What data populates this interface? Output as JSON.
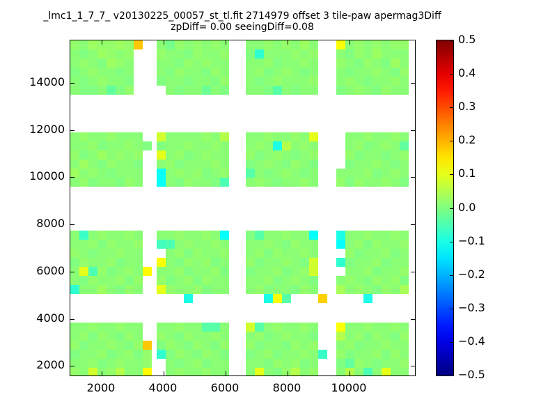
{
  "chart_data": {
    "type": "heatmap",
    "title": "_lmc1_1_7_7_ v20130225_00057_st_tl.fit 2714979 offset 3 tile-paw apermag3Diff",
    "subtitle": "zpDiff= 0.00 seeingDiff=0.08",
    "colormap": "jet",
    "grid": false,
    "xlim": [
      1000,
      12100
    ],
    "ylim": [
      1600,
      15800
    ],
    "x_ticks": [
      2000,
      4000,
      6000,
      8000,
      10000
    ],
    "y_ticks": [
      2000,
      4000,
      6000,
      8000,
      10000,
      12000,
      14000
    ],
    "colorbar": {
      "min": -0.5,
      "max": 0.5,
      "ticks": [
        0.5,
        0.4,
        0.3,
        0.2,
        0.1,
        0.0,
        -0.1,
        -0.2,
        -0.3,
        -0.4,
        -0.5
      ],
      "position": "right"
    },
    "blocks": [
      {
        "row": 0,
        "col": 0,
        "cells": [
          [
            0.02,
            0.01,
            0.03,
            0.02,
            0.02,
            0.03,
            0.02,
            0.18
          ],
          [
            0.01,
            0.0,
            0.01,
            0.03,
            0.02,
            0.01,
            0.02,
            null
          ],
          [
            0.01,
            0.02,
            0.01,
            0.0,
            0.03,
            0.02,
            0.01,
            null
          ],
          [
            0.0,
            0.01,
            0.02,
            0.01,
            0.01,
            0.0,
            0.01,
            null
          ],
          [
            0.01,
            0.0,
            0.01,
            0.02,
            0.01,
            0.01,
            0.0,
            null
          ],
          [
            0.01,
            0.0,
            0.0,
            0.01,
            -0.03,
            0.0,
            0.02,
            null
          ]
        ]
      },
      {
        "row": 0,
        "col": 1,
        "cells": [
          [
            0.01,
            -0.01,
            0.02,
            0.01,
            0.02,
            0.01,
            0.02,
            0.01
          ],
          [
            0.02,
            0.01,
            0.01,
            0.0,
            0.02,
            0.01,
            0.01,
            0.02
          ],
          [
            0.01,
            0.01,
            0.0,
            0.02,
            0.01,
            0.02,
            0.01,
            0.01
          ],
          [
            0.01,
            0.0,
            0.02,
            0.01,
            0.01,
            0.0,
            0.02,
            0.01
          ],
          [
            0.0,
            0.01,
            0.01,
            0.0,
            0.01,
            0.01,
            0.0,
            0.02
          ],
          [
            null,
            0.01,
            0.0,
            0.01,
            0.01,
            -0.02,
            0.01,
            0.0
          ]
        ]
      },
      {
        "row": 0,
        "col": 2,
        "cells": [
          [
            0.01,
            0.01,
            0.02,
            0.01,
            0.02,
            0.01,
            0.03,
            0.01
          ],
          [
            0.0,
            -0.08,
            0.01,
            0.01,
            0.01,
            0.02,
            0.01,
            0.02
          ],
          [
            0.01,
            0.01,
            0.02,
            0.0,
            0.01,
            0.01,
            0.02,
            0.01
          ],
          [
            0.01,
            0.02,
            0.0,
            0.01,
            0.02,
            0.01,
            0.0,
            0.01
          ],
          [
            0.01,
            0.0,
            0.01,
            0.02,
            0.01,
            0.01,
            0.01,
            0.02
          ],
          [
            0.01,
            0.01,
            0.0,
            -0.04,
            0.01,
            0.0,
            0.01,
            0.01
          ]
        ]
      },
      {
        "row": 0,
        "col": 3,
        "cells": [
          [
            0.12,
            0.01,
            0.02,
            0.01,
            0.02,
            0.01,
            0.02,
            0.02
          ],
          [
            0.01,
            0.0,
            0.02,
            0.01,
            0.03,
            0.01,
            0.01,
            0.01
          ],
          [
            0.02,
            0.01,
            0.0,
            0.02,
            0.01,
            0.0,
            0.03,
            0.01
          ],
          [
            0.01,
            0.0,
            0.01,
            0.01,
            0.02,
            0.01,
            0.0,
            0.02
          ],
          [
            0.01,
            0.02,
            0.01,
            0.0,
            0.01,
            0.01,
            0.02,
            0.01
          ],
          [
            0.0,
            0.01,
            0.02,
            0.01,
            0.0,
            0.02,
            0.01,
            0.01
          ]
        ]
      },
      {
        "row": 1,
        "col": 0,
        "cells": [
          [
            0.01,
            0.02,
            0.01,
            0.01,
            0.02,
            0.01,
            0.01,
            0.01,
            null
          ],
          [
            0.01,
            0.01,
            0.02,
            0.0,
            0.01,
            0.01,
            0.02,
            0.01,
            0.0
          ],
          [
            0.02,
            0.0,
            0.01,
            0.03,
            0.01,
            0.02,
            0.01,
            0.02,
            null
          ],
          [
            0.01,
            0.03,
            0.01,
            0.0,
            0.02,
            0.01,
            0.01,
            0.0,
            null
          ],
          [
            0.03,
            0.01,
            0.02,
            0.01,
            0.0,
            0.01,
            0.01,
            0.01,
            null
          ],
          [
            0.01,
            0.02,
            0.0,
            0.01,
            0.01,
            0.0,
            0.02,
            0.01,
            null
          ]
        ]
      },
      {
        "row": 1,
        "col": 1,
        "cells": [
          [
            0.08,
            0.01,
            0.01,
            0.01,
            0.01,
            0.02,
            0.01,
            0.05
          ],
          [
            0.0,
            0.01,
            0.01,
            0.02,
            0.01,
            0.01,
            0.02,
            0.01
          ],
          [
            0.1,
            0.01,
            0.02,
            0.0,
            0.01,
            0.02,
            0.01,
            0.01
          ],
          [
            0.01,
            0.02,
            0.0,
            0.01,
            0.01,
            0.01,
            0.02,
            0.01
          ],
          [
            -0.12,
            0.01,
            0.02,
            0.01,
            0.02,
            0.0,
            0.01,
            0.02
          ],
          [
            -0.12,
            0.01,
            0.0,
            0.02,
            0.01,
            0.01,
            0.0,
            -0.05
          ]
        ]
      },
      {
        "row": 1,
        "col": 2,
        "cells": [
          [
            0.01,
            0.01,
            0.02,
            0.01,
            0.01,
            0.02,
            0.01,
            0.1
          ],
          [
            0.01,
            0.02,
            0.01,
            -0.1,
            0.05,
            0.01,
            0.02,
            0.01
          ],
          [
            0.02,
            0.0,
            0.01,
            0.02,
            0.01,
            0.0,
            0.01,
            0.02
          ],
          [
            0.0,
            0.01,
            0.02,
            0.01,
            0.0,
            0.02,
            0.01,
            0.0
          ],
          [
            -0.04,
            0.01,
            0.0,
            0.01,
            0.02,
            0.01,
            0.0,
            0.01
          ],
          [
            0.01,
            0.02,
            0.01,
            0.0,
            0.01,
            0.01,
            0.02,
            0.01
          ]
        ]
      },
      {
        "row": 1,
        "col": 3,
        "cells": [
          [
            null,
            0.01,
            0.01,
            0.02,
            0.01,
            0.01,
            0.02,
            0.01
          ],
          [
            null,
            0.01,
            0.02,
            0.0,
            0.01,
            0.02,
            0.01,
            -0.03
          ],
          [
            null,
            0.02,
            0.0,
            0.01,
            0.01,
            0.0,
            0.01,
            0.02
          ],
          [
            null,
            0.0,
            0.01,
            0.01,
            0.02,
            0.01,
            0.0,
            0.01
          ],
          [
            0.01,
            0.01,
            0.01,
            0.02,
            0.0,
            0.01,
            0.02,
            0.01
          ],
          [
            0.02,
            0.0,
            0.02,
            0.01,
            0.01,
            0.02,
            0.01,
            0.0
          ]
        ]
      },
      {
        "row": 2,
        "col": 0,
        "cells": [
          [
            0.01,
            -0.07,
            0.01,
            0.02,
            0.01,
            0.01,
            0.02,
            0.01,
            null
          ],
          [
            0.01,
            0.01,
            0.02,
            0.0,
            0.02,
            0.01,
            0.01,
            0.02,
            null
          ],
          [
            0.02,
            0.01,
            0.0,
            0.01,
            0.01,
            0.02,
            0.01,
            0.01,
            null
          ],
          [
            0.0,
            0.02,
            0.01,
            0.01,
            0.02,
            0.0,
            0.01,
            0.01,
            null
          ],
          [
            0.01,
            0.1,
            -0.05,
            0.02,
            0.0,
            0.01,
            0.02,
            0.01,
            0.13
          ],
          [
            0.01,
            0.0,
            0.02,
            0.01,
            0.01,
            0.02,
            0.0,
            0.02,
            null
          ],
          [
            -0.08,
            0.01,
            0.01,
            0.03,
            0.01,
            0.0,
            0.02,
            0.01,
            null
          ]
        ]
      },
      {
        "row": 2,
        "col": 1,
        "cells": [
          [
            0.01,
            0.01,
            0.02,
            0.01,
            0.01,
            0.02,
            0.01,
            -0.12
          ],
          [
            -0.06,
            -0.05,
            0.01,
            0.02,
            0.01,
            0.01,
            0.02,
            0.01
          ],
          [
            null,
            0.01,
            0.02,
            0.0,
            0.02,
            0.01,
            0.01,
            0.02
          ],
          [
            0.12,
            0.01,
            0.0,
            0.02,
            0.01,
            0.02,
            0.0,
            0.01
          ],
          [
            0.01,
            0.01,
            0.02,
            0.0,
            0.01,
            0.01,
            0.02,
            0.0
          ],
          [
            0.02,
            0.0,
            0.01,
            0.02,
            0.0,
            0.02,
            0.01,
            0.01
          ],
          [
            0.1,
            0.02,
            0.01,
            0.01,
            0.02,
            0.0,
            0.01,
            0.01
          ],
          [
            null,
            null,
            null,
            -0.1,
            null,
            null,
            null,
            null
          ]
        ]
      },
      {
        "row": 2,
        "col": 2,
        "cells": [
          [
            0.0,
            -0.04,
            0.01,
            0.01,
            0.02,
            0.01,
            0.01,
            -0.12,
            null
          ],
          [
            0.01,
            0.01,
            0.02,
            0.01,
            0.0,
            0.02,
            0.01,
            0.01,
            null
          ],
          [
            0.01,
            0.02,
            0.0,
            0.02,
            0.01,
            0.01,
            0.02,
            0.01,
            null
          ],
          [
            0.02,
            0.0,
            0.01,
            0.01,
            0.02,
            0.01,
            0.0,
            0.08,
            null
          ],
          [
            0.0,
            0.01,
            0.01,
            0.02,
            0.0,
            0.01,
            0.02,
            0.08,
            null
          ],
          [
            0.01,
            0.01,
            0.02,
            0.0,
            0.01,
            0.02,
            0.01,
            0.0,
            null
          ],
          [
            0.01,
            0.02,
            0.0,
            0.01,
            0.01,
            0.0,
            0.02,
            0.01,
            null
          ],
          [
            null,
            null,
            -0.1,
            0.12,
            -0.04,
            null,
            null,
            null,
            0.17
          ]
        ]
      },
      {
        "row": 2,
        "col": 3,
        "cells": [
          [
            -0.1,
            0.01,
            0.01,
            0.02,
            0.01,
            0.01,
            0.02,
            0.01
          ],
          [
            -0.12,
            0.01,
            0.02,
            0.0,
            0.02,
            0.01,
            0.01,
            0.02
          ],
          [
            null,
            0.02,
            0.0,
            0.01,
            0.01,
            0.02,
            0.0,
            0.01
          ],
          [
            -0.08,
            0.0,
            0.01,
            0.01,
            0.02,
            0.0,
            0.01,
            0.01
          ],
          [
            null,
            0.01,
            0.01,
            0.02,
            0.0,
            0.01,
            0.01,
            0.02
          ],
          [
            0.01,
            0.02,
            0.01,
            0.0,
            0.02,
            0.01,
            0.02,
            0.0
          ],
          [
            0.04,
            0.01,
            0.02,
            0.01,
            0.0,
            0.02,
            0.01,
            0.04
          ],
          [
            null,
            null,
            null,
            -0.1,
            null,
            null,
            null,
            null
          ]
        ]
      },
      {
        "row": 3,
        "col": 0,
        "cells": [
          [
            0.01,
            0.01,
            0.02,
            0.01,
            0.01,
            0.02,
            0.01,
            0.01,
            null
          ],
          [
            0.01,
            0.02,
            0.0,
            0.02,
            0.01,
            0.0,
            0.02,
            0.01,
            null
          ],
          [
            0.02,
            0.0,
            0.01,
            0.01,
            0.02,
            0.01,
            0.0,
            0.02,
            0.18
          ],
          [
            0.0,
            0.01,
            0.01,
            0.02,
            0.0,
            0.01,
            0.02,
            0.0,
            0.02
          ],
          [
            0.01,
            0.01,
            0.02,
            0.0,
            0.01,
            0.02,
            0.01,
            0.01,
            0.02
          ],
          [
            0.02,
            0.01,
            0.08,
            0.01,
            0.02,
            0.05,
            0.01,
            0.01,
            0.13
          ]
        ]
      },
      {
        "row": 3,
        "col": 1,
        "cells": [
          [
            0.01,
            0.01,
            0.02,
            0.01,
            0.01,
            -0.04,
            -0.04,
            0.01
          ],
          [
            0.02,
            0.01,
            0.0,
            0.02,
            0.01,
            0.01,
            0.02,
            0.01
          ],
          [
            0.0,
            0.02,
            0.01,
            0.0,
            0.02,
            0.01,
            0.0,
            0.02
          ],
          [
            -0.08,
            0.0,
            0.02,
            0.01,
            0.0,
            0.02,
            0.01,
            0.0
          ],
          [
            null,
            0.01,
            0.0,
            0.01,
            0.02,
            0.0,
            0.01,
            0.01
          ],
          [
            null,
            0.01,
            0.02,
            0.01,
            0.01,
            0.02,
            0.01,
            0.01
          ]
        ]
      },
      {
        "row": 3,
        "col": 2,
        "cells": [
          [
            0.08,
            -0.04,
            0.01,
            0.02,
            0.01,
            0.01,
            0.02,
            0.01,
            null
          ],
          [
            0.01,
            0.02,
            0.0,
            0.01,
            0.02,
            0.01,
            0.01,
            0.0,
            null
          ],
          [
            0.02,
            0.0,
            0.01,
            0.01,
            0.0,
            0.02,
            0.01,
            0.02,
            null
          ],
          [
            0.0,
            0.01,
            0.02,
            0.0,
            0.01,
            0.01,
            0.02,
            0.01,
            -0.07
          ],
          [
            0.01,
            0.01,
            0.0,
            0.02,
            0.01,
            0.02,
            0.0,
            0.01,
            null
          ],
          [
            0.01,
            0.1,
            0.01,
            0.0,
            0.02,
            0.05,
            0.01,
            0.02,
            null
          ]
        ]
      },
      {
        "row": 3,
        "col": 3,
        "cells": [
          [
            0.12,
            0.01,
            0.01,
            0.02,
            0.01,
            0.01,
            0.02,
            0.01
          ],
          [
            0.05,
            0.01,
            0.02,
            0.0,
            0.02,
            0.01,
            0.0,
            0.02
          ],
          [
            0.01,
            0.02,
            0.0,
            0.01,
            0.01,
            0.02,
            0.01,
            0.01
          ],
          [
            0.02,
            0.0,
            0.01,
            0.01,
            0.02,
            0.0,
            0.02,
            0.01
          ],
          [
            0.0,
            -0.03,
            0.02,
            0.01,
            0.0,
            0.01,
            0.01,
            0.02
          ],
          [
            0.01,
            0.05,
            0.01,
            -0.05,
            0.01,
            0.1,
            0.01,
            0.01
          ]
        ]
      }
    ]
  }
}
